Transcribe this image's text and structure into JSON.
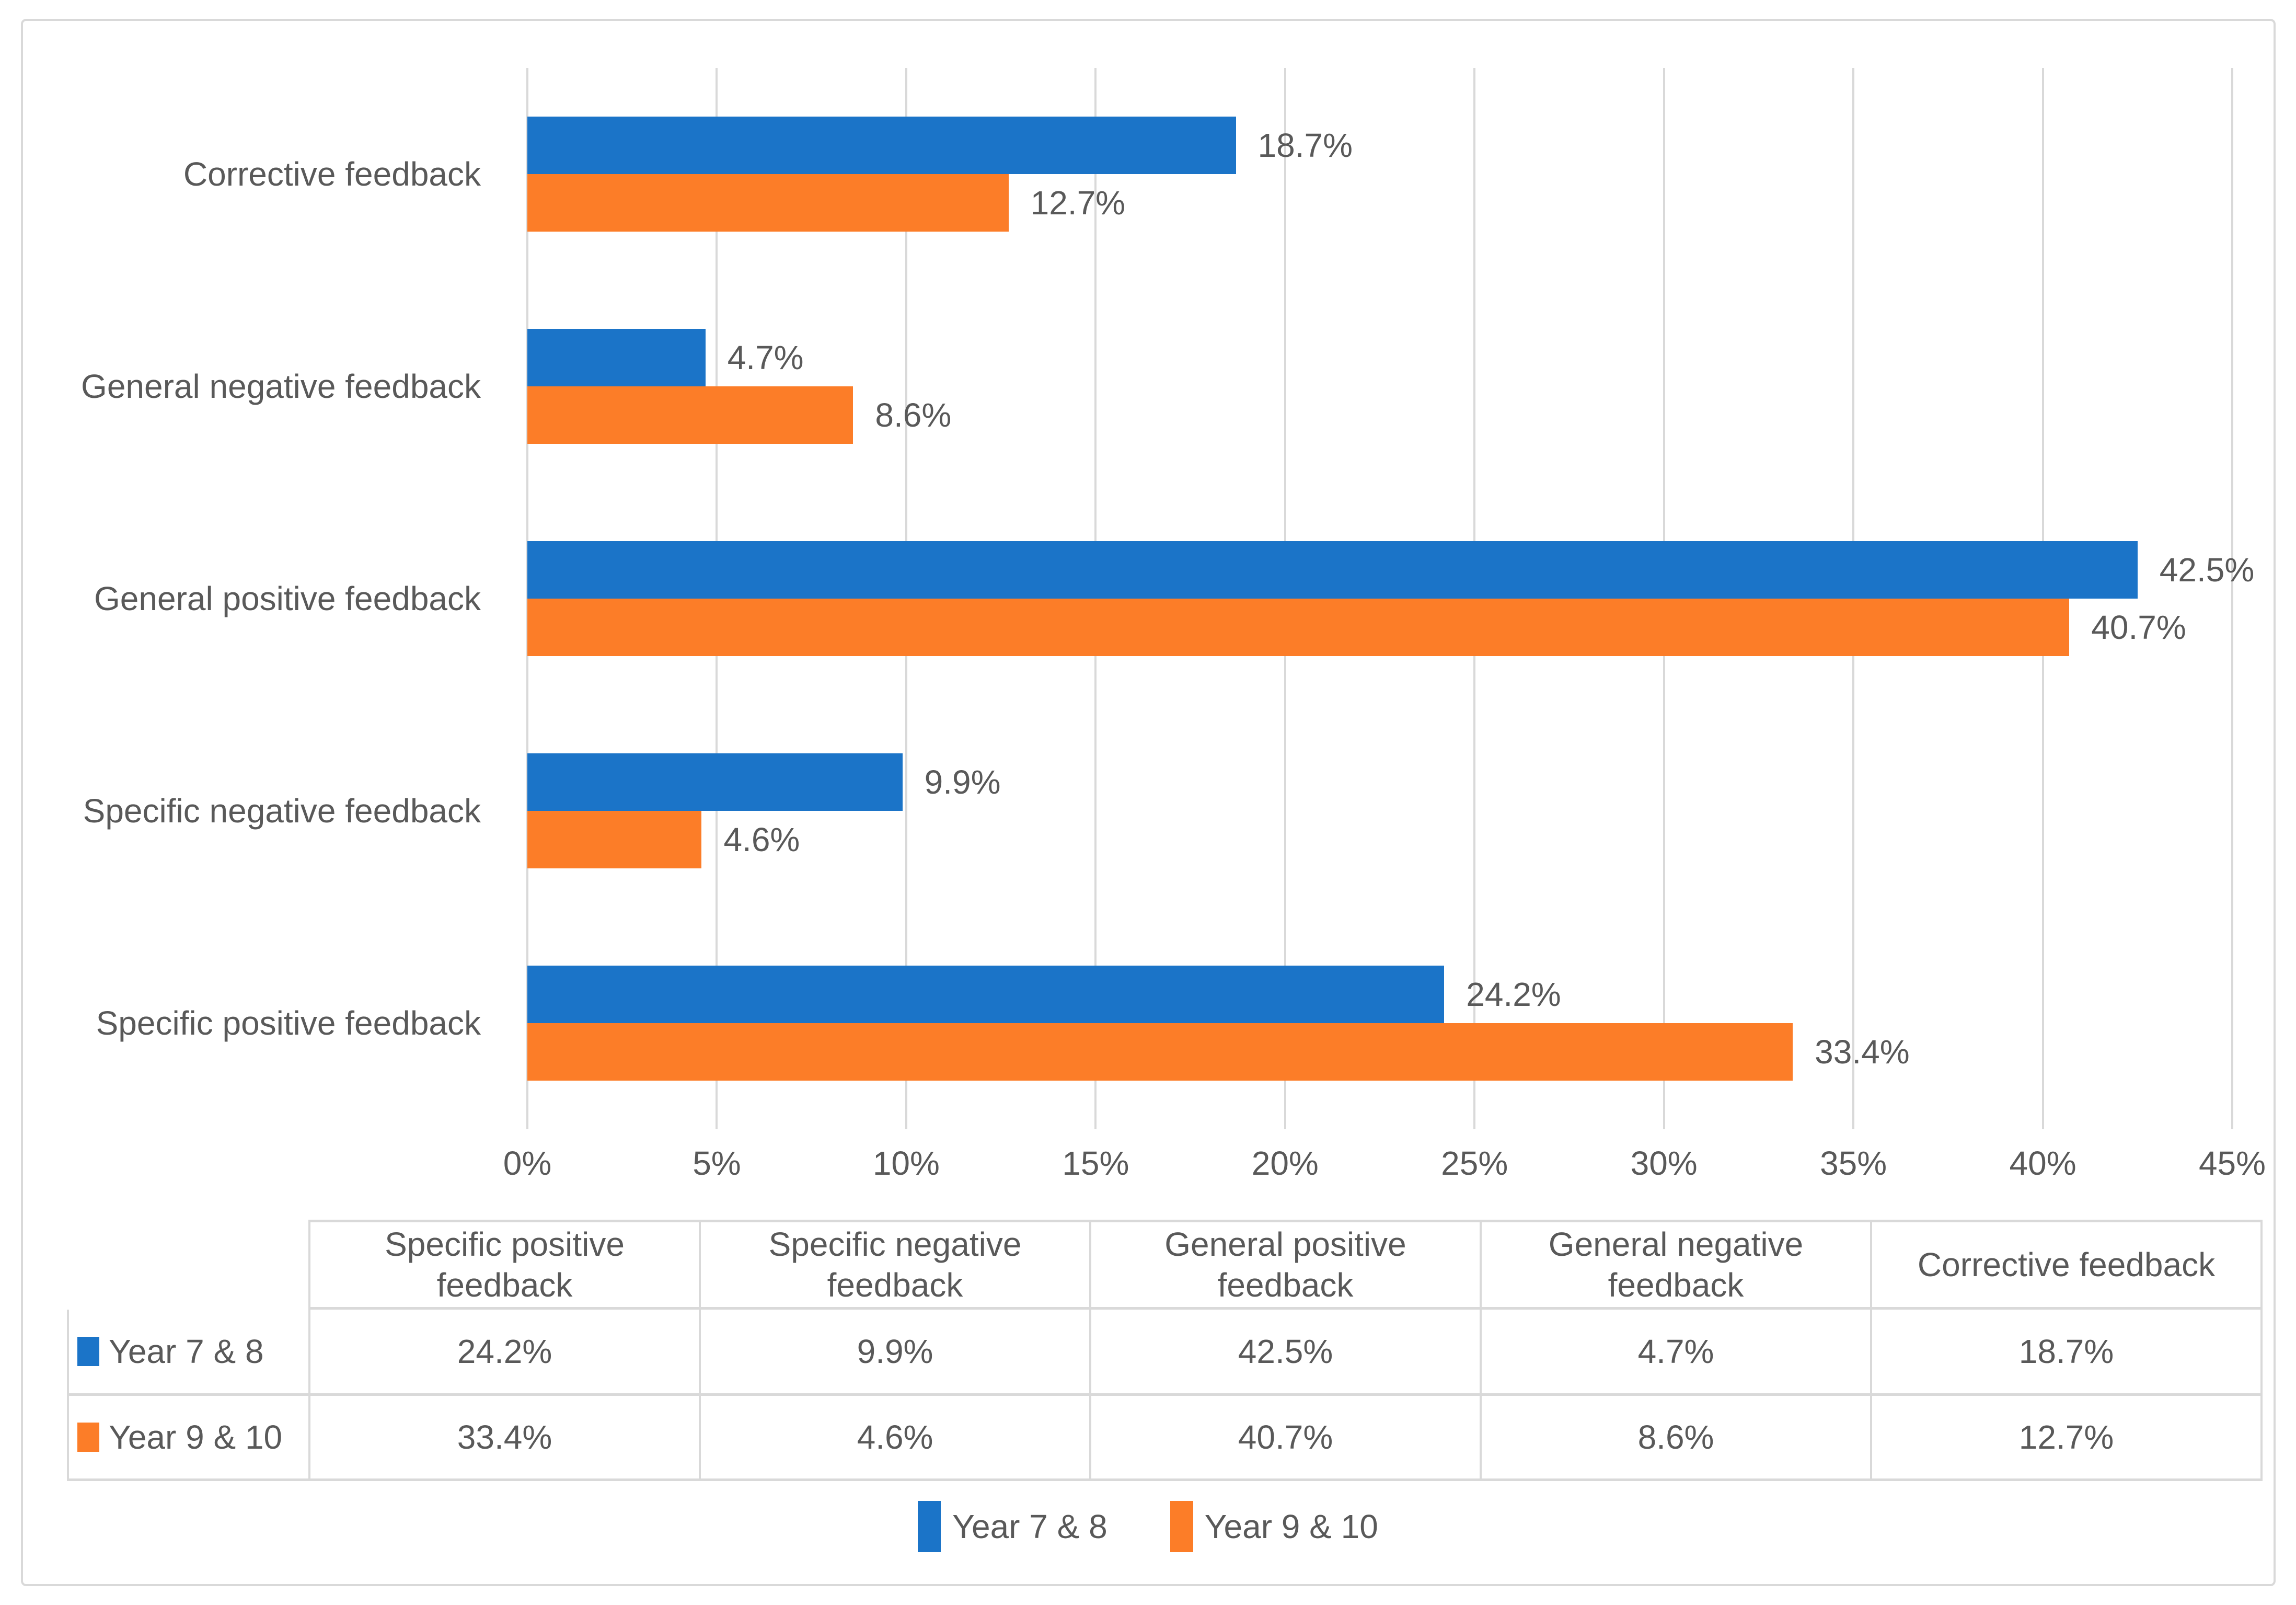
{
  "colors": {
    "series1_blue": "#1B74C8",
    "series2_orange": "#FC7D28",
    "grid_gray": "#D9D9D9",
    "text_gray": "#595959",
    "frame_border": "#D9D9D9"
  },
  "chart_data": {
    "type": "bar",
    "orientation": "horizontal",
    "title": "",
    "xlabel": "",
    "ylabel": "",
    "grid": true,
    "legend_position": "bottom",
    "categories": [
      "Specific positive feedback",
      "Specific negative feedback",
      "General positive feedback",
      "General negative feedback",
      "Corrective feedback"
    ],
    "category_order_top_to_bottom": [
      "Corrective feedback",
      "General negative feedback",
      "General positive feedback",
      "Specific negative feedback",
      "Specific positive feedback"
    ],
    "series": [
      {
        "name": "Year 7 & 8",
        "color": "#1B74C8",
        "values": [
          24.2,
          9.9,
          42.5,
          4.7,
          18.7
        ],
        "labels": [
          "24.2%",
          "9.9%",
          "42.5%",
          "4.7%",
          "18.7%"
        ]
      },
      {
        "name": "Year 9 & 10",
        "color": "#FC7D28",
        "values": [
          33.4,
          4.6,
          40.7,
          8.6,
          12.7
        ],
        "labels": [
          "33.4%",
          "4.6%",
          "40.7%",
          "8.6%",
          "12.7%"
        ]
      }
    ],
    "value_axis": {
      "min": 0,
      "max": 45,
      "tick_step": 5,
      "tick_labels": [
        "0%",
        "5%",
        "10%",
        "15%",
        "20%",
        "25%",
        "30%",
        "35%",
        "40%",
        "45%"
      ]
    }
  },
  "data_table": {
    "corner_label": "",
    "column_headers": [
      "Specific positive feedback",
      "Specific negative feedback",
      "General positive feedback",
      "General negative feedback",
      "Corrective feedback"
    ],
    "rows": [
      {
        "label": "Year 7 & 8",
        "key_color": "#1B74C8",
        "values": [
          "24.2%",
          "9.9%",
          "42.5%",
          "4.7%",
          "18.7%"
        ]
      },
      {
        "label": "Year 9 & 10",
        "key_color": "#FC7D28",
        "values": [
          "33.4%",
          "4.6%",
          "40.7%",
          "8.6%",
          "12.7%"
        ]
      }
    ]
  },
  "legend": {
    "items": [
      {
        "label": "Year 7 & 8",
        "color": "#1B74C8"
      },
      {
        "label": "Year 9 & 10",
        "color": "#FC7D28"
      }
    ]
  }
}
